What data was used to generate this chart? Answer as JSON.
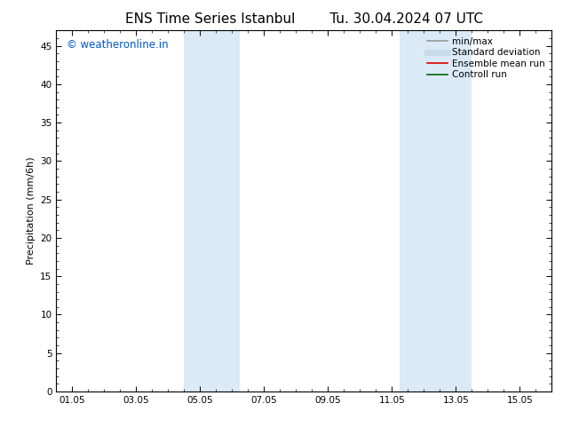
{
  "title_left": "ENS Time Series Istanbul",
  "title_right": "Tu. 30.04.2024 07 UTC",
  "ylabel": "Precipitation (mm/6h)",
  "ylim": [
    0,
    47
  ],
  "yticks": [
    0,
    5,
    10,
    15,
    20,
    25,
    30,
    35,
    40,
    45
  ],
  "xtick_labels": [
    "01.05",
    "03.05",
    "05.05",
    "07.05",
    "09.05",
    "11.05",
    "13.05",
    "15.05"
  ],
  "xtick_positions": [
    0,
    2,
    4,
    6,
    8,
    10,
    12,
    14
  ],
  "xlim": [
    -0.5,
    15.0
  ],
  "shaded_bands": [
    {
      "x_start": 3.5,
      "x_end": 5.25,
      "color": "#daeaf7"
    },
    {
      "x_start": 10.25,
      "x_end": 12.5,
      "color": "#daeaf7"
    }
  ],
  "band_border_color": "#b0cce0",
  "watermark_text": "© weatheronline.in",
  "watermark_color": "#0055cc",
  "watermark_fontsize": 8.5,
  "legend_entries": [
    {
      "label": "min/max",
      "color": "#999999",
      "lw": 1.2
    },
    {
      "label": "Standard deviation",
      "color": "#c8dced",
      "lw": 5
    },
    {
      "label": "Ensemble mean run",
      "color": "#dd0000",
      "lw": 1.2
    },
    {
      "label": "Controll run",
      "color": "#006600",
      "lw": 1.2
    }
  ],
  "title_fontsize": 11,
  "axis_label_fontsize": 8,
  "tick_fontsize": 7.5,
  "legend_fontsize": 7.5,
  "background_color": "#ffffff",
  "plot_bg_color": "#ffffff",
  "spine_color": "#000000",
  "spine_lw": 0.8
}
